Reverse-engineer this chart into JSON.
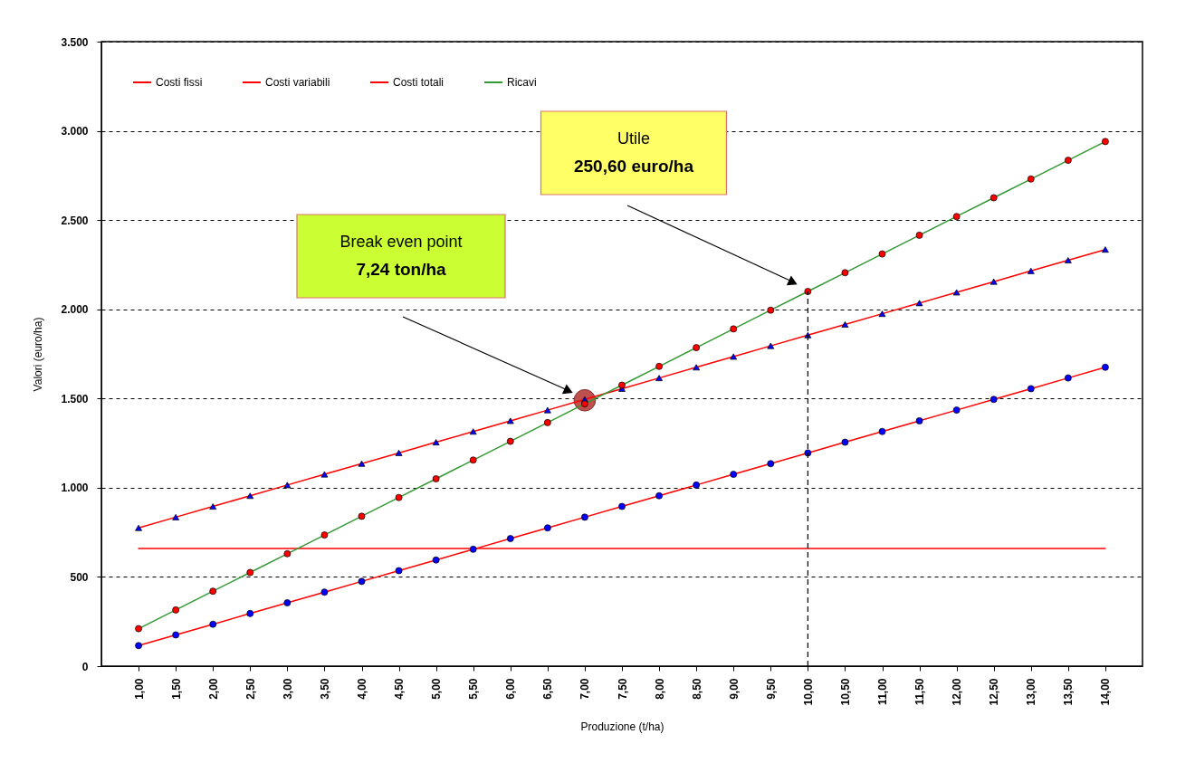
{
  "chart_data": {
    "type": "line",
    "xlabel": "Produzione (t/ha)",
    "ylabel": "Valori (euro/ha)",
    "x": [
      1,
      1.5,
      2,
      2.5,
      3,
      3.5,
      4,
      4.5,
      5,
      5.5,
      6,
      6.5,
      7,
      7.5,
      8,
      8.5,
      9,
      9.5,
      10,
      10.5,
      11,
      11.5,
      12,
      12.5,
      13,
      13.5,
      14
    ],
    "series": [
      {
        "name": "Costi fissi",
        "color": "#ff0000",
        "marker": "none",
        "values": [
          660,
          660,
          660,
          660,
          660,
          660,
          660,
          660,
          660,
          660,
          660,
          660,
          660,
          660,
          660,
          660,
          660,
          660,
          660,
          660,
          660,
          660,
          660,
          660,
          660,
          660,
          660
        ]
      },
      {
        "name": "Costi variabili",
        "color": "#ff0000",
        "marker": "circle",
        "colors": [
          "#0000ff",
          "#0000ff",
          "#0000ff",
          "#0000ff",
          "#0000ff",
          "#0000ff",
          "#0000ff",
          "#0000ff",
          "#0000ff",
          "#0000ff",
          "#0000ff",
          "#0000ff",
          "#0000ff",
          "#0000ff",
          "#0000ff",
          "#0000ff",
          "#0000ff",
          "#0000ff",
          "#0000ff",
          "#0000ff",
          "#0000ff",
          "#0000ff",
          "#0000ff",
          "#0000ff",
          "#0000ff",
          "#0000ff",
          "#0000ff"
        ],
        "values": [
          115,
          175,
          235,
          295,
          355,
          415,
          475,
          535,
          595,
          655,
          715,
          775,
          835,
          895,
          955,
          1015,
          1075,
          1135,
          1195,
          1255,
          1315,
          1375,
          1435,
          1495,
          1555,
          1615,
          1675
        ]
      },
      {
        "name": "Costi totali",
        "color": "#ff0000",
        "marker": "triangle",
        "colors": [
          "#0000ff",
          "#0000ff",
          "#0000ff",
          "#0000ff",
          "#0000ff",
          "#0000ff",
          "#0000ff",
          "#0000ff",
          "#0000ff",
          "#0000ff",
          "#0000ff",
          "#0000ff",
          "#0000ff",
          "#0000ff",
          "#0000ff",
          "#0000ff",
          "#0000ff",
          "#0000ff",
          "#0000ff",
          "#0000ff",
          "#0000ff",
          "#0000ff",
          "#0000ff",
          "#0000ff",
          "#0000ff",
          "#0000ff",
          "#0000ff"
        ],
        "values": [
          775,
          835,
          895,
          955,
          1015,
          1075,
          1135,
          1195,
          1255,
          1315,
          1375,
          1435,
          1495,
          1555,
          1615,
          1675,
          1735,
          1795,
          1855,
          1915,
          1975,
          2035,
          2095,
          2155,
          2215,
          2275,
          2335
        ]
      },
      {
        "name": "Ricavi",
        "color": "#339933",
        "marker": "circle",
        "colors": [
          "#ff0000",
          "#ff0000",
          "#ff0000",
          "#ff0000",
          "#ff0000",
          "#ff0000",
          "#ff0000",
          "#ff0000",
          "#ff0000",
          "#ff0000",
          "#ff0000",
          "#ff0000",
          "#ff0000",
          "#ff0000",
          "#ff0000",
          "#ff0000",
          "#ff0000",
          "#ff0000",
          "#ff0000",
          "#ff0000",
          "#ff0000",
          "#ff0000",
          "#ff0000",
          "#ff0000",
          "#ff0000",
          "#ff0000",
          "#ff0000"
        ],
        "values": [
          210,
          315,
          420,
          525,
          630,
          735,
          840,
          945,
          1050,
          1155,
          1260,
          1365,
          1470,
          1575,
          1680,
          1785,
          1890,
          1995,
          2100,
          2205,
          2310,
          2415,
          2520,
          2625,
          2730,
          2835,
          2940
        ]
      },
      {
        "type": "scatter",
        "color": "#c0504d",
        "x": [
          7
        ],
        "values": [
          1490
        ]
      }
    ],
    "xlim": [
      0.5,
      14.5
    ],
    "xticks": [
      {
        "value": 1,
        "label": "1,00"
      },
      {
        "value": 1.5,
        "label": "1,50"
      },
      {
        "value": 2,
        "label": "2,00"
      },
      {
        "value": 2.5,
        "label": "2,50"
      },
      {
        "value": 3,
        "label": "3,00"
      },
      {
        "value": 3.5,
        "label": "3,50"
      },
      {
        "value": 4,
        "label": "4,00"
      },
      {
        "value": 4.5,
        "label": "4,50"
      },
      {
        "value": 5,
        "label": "5,00"
      },
      {
        "value": 5.5,
        "label": "5,50"
      },
      {
        "value": 6,
        "label": "6,00"
      },
      {
        "value": 6.5,
        "label": "6,50"
      },
      {
        "value": 7,
        "label": "7,00"
      },
      {
        "value": 7.5,
        "label": "7,50"
      },
      {
        "value": 8,
        "label": "8,00"
      },
      {
        "value": 8.5,
        "label": "8,50"
      },
      {
        "value": 9,
        "label": "9,00"
      },
      {
        "value": 9.5,
        "label": "9,50"
      },
      {
        "value": 10,
        "label": "10,00"
      },
      {
        "value": 10.5,
        "label": "10,50"
      },
      {
        "value": 11,
        "label": "11,00"
      },
      {
        "value": 11.5,
        "label": "11,50"
      },
      {
        "value": 12,
        "label": "12,00"
      },
      {
        "value": 12.5,
        "label": "12,50"
      },
      {
        "value": 13,
        "label": "13,00"
      },
      {
        "value": 13.5,
        "label": "13,50"
      },
      {
        "value": 14,
        "label": "14,00"
      }
    ],
    "ylim": [
      0,
      3500
    ],
    "yticks": [
      0,
      500,
      {
        "value": 1000,
        "label": "1.000"
      },
      {
        "value": 1500,
        "label": "1.500"
      },
      {
        "value": 2000,
        "label": "2.000"
      },
      {
        "value": 2500,
        "label": "2.500"
      },
      {
        "value": 3000,
        "label": "3.000"
      },
      {
        "value": 3500,
        "label": "3.500"
      }
    ],
    "ref_lines": [
      {
        "axis": "x",
        "value": 10,
        "line_style": "dashed",
        "color": "#000000"
      }
    ],
    "annotations": [
      "Break even point\n7,24 ton/ha",
      "Utile\n250,60 euro/ha"
    ],
    "grid": "y",
    "legend": "top left",
    "line_style": "solid"
  }
}
